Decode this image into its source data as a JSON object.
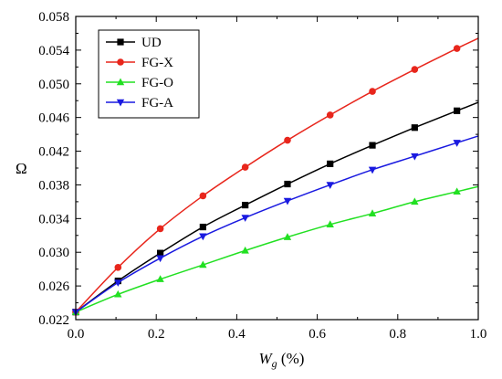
{
  "chart_data": {
    "type": "line",
    "title": "",
    "xlabel": {
      "main": "W",
      "sub": "g",
      "unit": " (%)"
    },
    "ylabel": "Ω",
    "xlim": [
      0.0,
      1.0
    ],
    "ylim": [
      0.022,
      0.058
    ],
    "xticks": [
      "0.0",
      "0.2",
      "0.4",
      "0.6",
      "0.8",
      "1.0"
    ],
    "yticks": [
      "0.022",
      "0.026",
      "0.030",
      "0.034",
      "0.038",
      "0.042",
      "0.046",
      "0.050",
      "0.054",
      "0.058"
    ],
    "grid": false,
    "legend_position": "top-left",
    "series": [
      {
        "name": "UD",
        "color": "#000000",
        "marker": "square",
        "x": [
          0.0,
          0.105,
          0.21,
          0.316,
          0.421,
          0.526,
          0.632,
          0.737,
          0.842,
          0.947
        ],
        "y": [
          0.0229,
          0.0266,
          0.0299,
          0.033,
          0.0356,
          0.0381,
          0.0405,
          0.0427,
          0.0448,
          0.0468
        ],
        "line_end": 0.0478
      },
      {
        "name": "FG-X",
        "color": "#e8261c",
        "marker": "circle",
        "x": [
          0.0,
          0.105,
          0.21,
          0.316,
          0.421,
          0.526,
          0.632,
          0.737,
          0.842,
          0.947
        ],
        "y": [
          0.0229,
          0.0282,
          0.0328,
          0.0367,
          0.0401,
          0.0433,
          0.0463,
          0.0491,
          0.0517,
          0.0542
        ],
        "line_end": 0.0554
      },
      {
        "name": "FG-O",
        "color": "#22e022",
        "marker": "triangle-up",
        "x": [
          0.0,
          0.105,
          0.21,
          0.316,
          0.421,
          0.526,
          0.632,
          0.737,
          0.842,
          0.947
        ],
        "y": [
          0.0229,
          0.025,
          0.0268,
          0.0285,
          0.0302,
          0.0318,
          0.0333,
          0.0346,
          0.036,
          0.0372
        ],
        "line_end": 0.0378
      },
      {
        "name": "FG-A",
        "color": "#1a1ae0",
        "marker": "triangle-down",
        "x": [
          0.0,
          0.105,
          0.21,
          0.316,
          0.421,
          0.526,
          0.632,
          0.737,
          0.842,
          0.947
        ],
        "y": [
          0.0229,
          0.0264,
          0.0293,
          0.0319,
          0.0341,
          0.0361,
          0.038,
          0.0398,
          0.0414,
          0.043
        ],
        "line_end": 0.0438
      }
    ]
  }
}
